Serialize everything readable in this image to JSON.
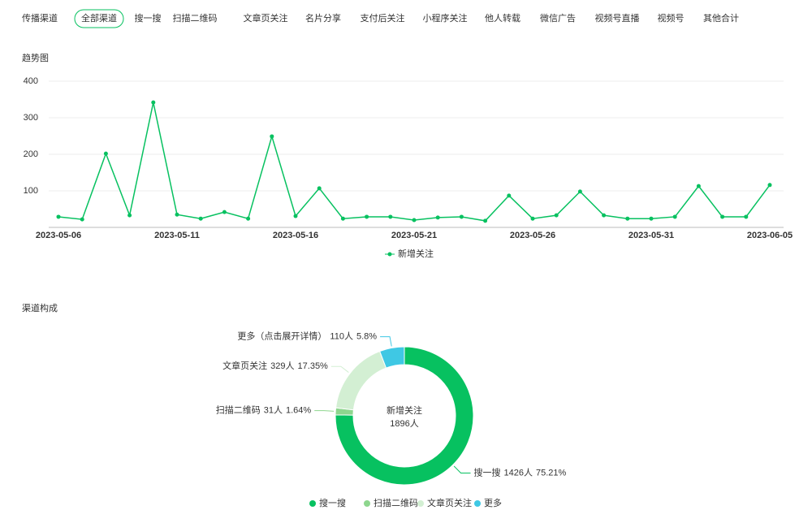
{
  "tabs": {
    "label": "传播渠道",
    "items": [
      "全部渠道",
      "搜一搜",
      "扫描二维码",
      "文章页关注",
      "名片分享",
      "支付后关注",
      "小程序关注",
      "他人转载",
      "微信广告",
      "视频号直播",
      "视频号",
      "其他合计"
    ],
    "selected": 0
  },
  "chart_data": [
    {
      "type": "line",
      "title": "趋势图",
      "x": [
        "2023-05-06",
        null,
        null,
        null,
        null,
        "2023-05-11",
        null,
        null,
        null,
        null,
        "2023-05-16",
        null,
        null,
        null,
        null,
        "2023-05-21",
        null,
        null,
        null,
        null,
        "2023-05-26",
        null,
        null,
        null,
        null,
        "2023-05-31",
        null,
        null,
        null,
        null,
        "2023-06-05"
      ],
      "series": [
        {
          "name": "新增关注",
          "color": "#07c160",
          "values": [
            29,
            22,
            202,
            33,
            342,
            35,
            24,
            42,
            24,
            249,
            31,
            107,
            24,
            29,
            29,
            20,
            27,
            29,
            18,
            87,
            24,
            33,
            98,
            33,
            24,
            24,
            29,
            113,
            29,
            29,
            116
          ]
        }
      ],
      "ylim": [
        0,
        400
      ],
      "yticks": [
        100,
        200,
        300,
        400
      ],
      "grid": true,
      "legend": "bottom"
    },
    {
      "type": "pie",
      "title": "渠道构成",
      "donut": true,
      "center_title": "新增关注",
      "total": 1896,
      "total_label": "1896人",
      "categories": [
        "搜一搜",
        "扫描二维码",
        "文章页关注",
        "更多"
      ],
      "labels": [
        "搜一搜",
        "扫描二维码",
        "文章页关注",
        "更多（点击展开详情）"
      ],
      "values": [
        1426,
        31,
        329,
        110
      ],
      "value_labels": [
        "1426人",
        "31人",
        "329人",
        "110人"
      ],
      "percent_labels": [
        "75.21%",
        "1.64%",
        "17.35%",
        "5.8%"
      ],
      "colors": [
        "#07c160",
        "#8ed68e",
        "#d3efd3",
        "#3fc8e4"
      ],
      "legend": "bottom"
    }
  ]
}
